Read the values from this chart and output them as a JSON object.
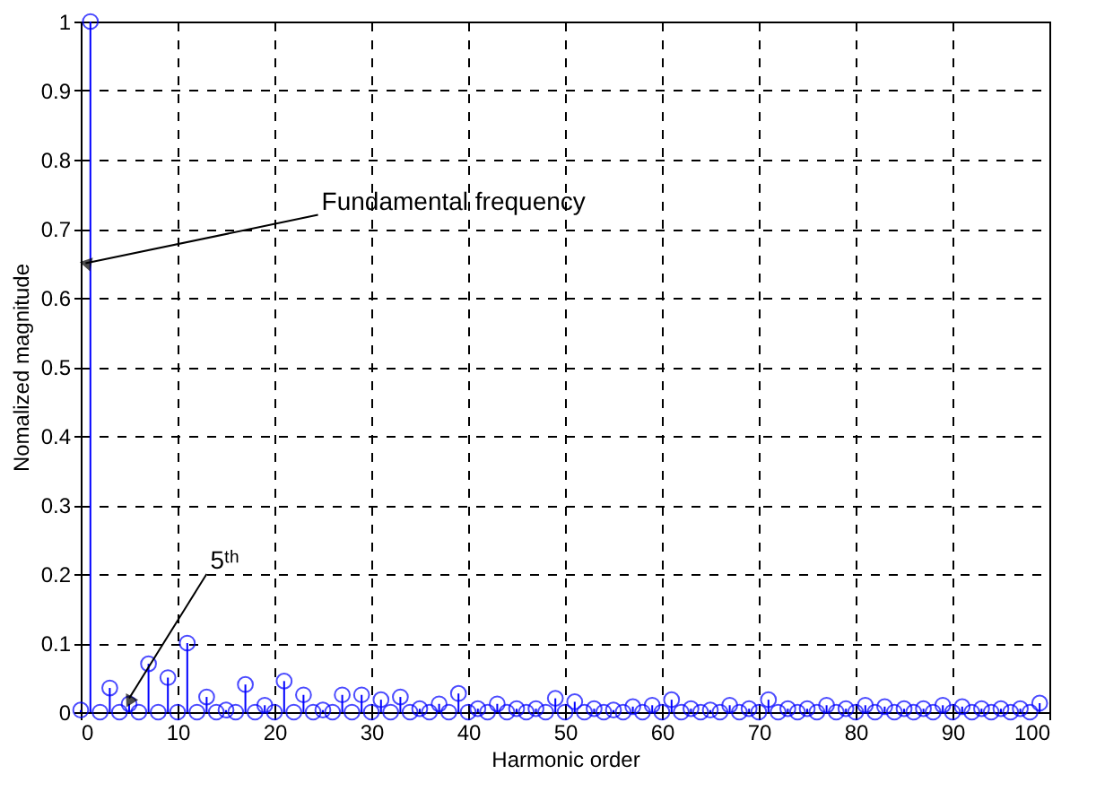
{
  "chart_data": {
    "type": "lollipop",
    "xlabel": "Harmonic order",
    "ylabel": "Nomalized magnitude",
    "x": [
      0,
      1,
      2,
      3,
      4,
      5,
      6,
      7,
      8,
      9,
      10,
      11,
      12,
      13,
      14,
      15,
      16,
      17,
      18,
      19,
      20,
      21,
      22,
      23,
      24,
      25,
      26,
      27,
      28,
      29,
      30,
      31,
      32,
      33,
      34,
      35,
      36,
      37,
      38,
      39,
      40,
      41,
      42,
      43,
      44,
      45,
      46,
      47,
      48,
      49,
      50,
      51,
      52,
      53,
      54,
      55,
      56,
      57,
      58,
      59,
      60,
      61,
      62,
      63,
      64,
      65,
      66,
      67,
      68,
      69,
      70,
      71,
      72,
      73,
      74,
      75,
      76,
      77,
      78,
      79,
      80,
      81,
      82,
      83,
      84,
      85,
      86,
      87,
      88,
      89,
      90,
      91,
      92,
      93,
      94,
      95,
      96,
      97,
      98,
      99
    ],
    "series": [
      {
        "color": "#0000ff",
        "values": [
          0.003,
          1,
          0,
          0.035,
          0,
          0.012,
          0,
          0.07,
          0,
          0.05,
          0,
          0.1,
          0,
          0.022,
          0,
          0.003,
          0,
          0.04,
          0,
          0.01,
          0,
          0.045,
          0,
          0.025,
          0,
          0.003,
          0,
          0.025,
          0,
          0.025,
          0,
          0.018,
          0,
          0.022,
          0,
          0.005,
          0,
          0.012,
          0,
          0.027,
          0,
          0.005,
          0,
          0.012,
          0,
          0.005,
          0,
          0.005,
          0,
          0.02,
          0,
          0.015,
          0,
          0.005,
          0,
          0.003,
          0,
          0.008,
          0,
          0.01,
          0,
          0.018,
          0,
          0.005,
          0,
          0.003,
          0,
          0.01,
          0,
          0.005,
          0,
          0.018,
          0,
          0.005,
          0,
          0.005,
          0,
          0.01,
          0,
          0.005,
          0,
          0.01,
          0,
          0.008,
          0,
          0.005,
          0,
          0.005,
          0,
          0.01,
          0,
          0.008,
          0,
          0.005,
          0,
          0.005,
          0,
          0.005,
          0,
          0.013
        ]
      }
    ],
    "xlim": [
      0,
      100
    ],
    "xticks": [
      0,
      10,
      20,
      30,
      40,
      50,
      60,
      70,
      80,
      90,
      100
    ],
    "ylim": [
      0,
      1
    ],
    "yticks": [
      0,
      0.1,
      0.2,
      0.3,
      0.4,
      0.5,
      0.6,
      0.7,
      0.8,
      0.9,
      1
    ],
    "grid": true,
    "marker": "circle",
    "annotations": [
      {
        "text": "Fundamental frequency",
        "x": 0.5,
        "y": 0.65
      },
      {
        "text": "5ᵗʰ",
        "x": 5,
        "y": 0.02
      }
    ]
  }
}
